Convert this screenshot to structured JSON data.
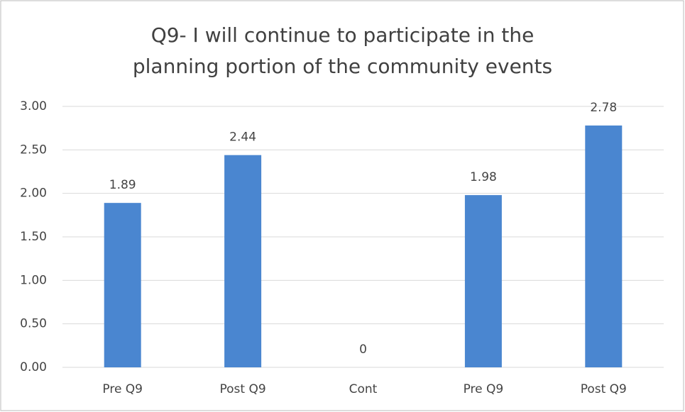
{
  "chart_data": {
    "type": "bar",
    "title": "Q9- I will continue to participate in the planning portion of the community events",
    "categories": [
      "Pre Q9",
      "Post Q9",
      "Cont",
      "Pre Q9",
      "Post Q9"
    ],
    "values": [
      1.89,
      2.44,
      0,
      1.98,
      2.78
    ],
    "color": "#4a86d0",
    "ylim": [
      0,
      3
    ],
    "yticks": [
      {
        "value": 0,
        "label": "0.00"
      },
      {
        "value": 0.5,
        "label": "0.50"
      },
      {
        "value": 1,
        "label": "1.00"
      },
      {
        "value": 1.5,
        "label": "1.50"
      },
      {
        "value": 2,
        "label": "2.00"
      },
      {
        "value": 2.5,
        "label": "2.50"
      },
      {
        "value": 3,
        "label": "3.00"
      }
    ],
    "grid": true
  }
}
